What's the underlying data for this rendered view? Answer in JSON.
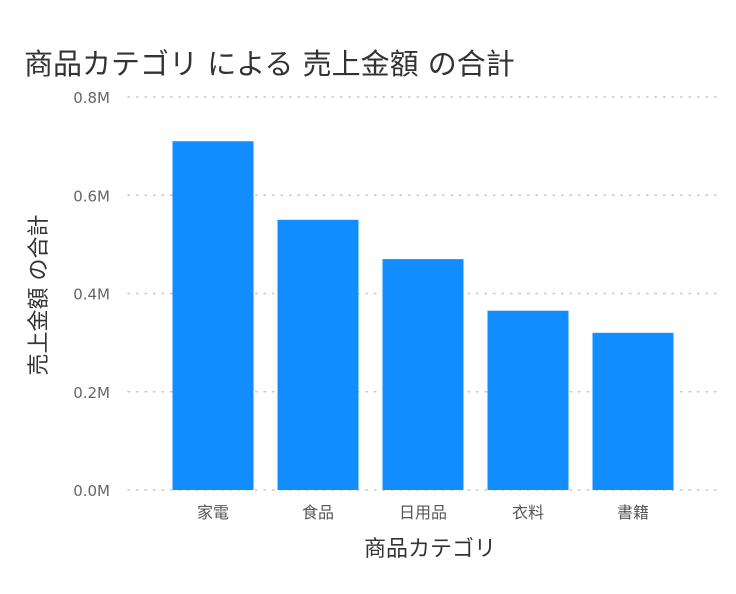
{
  "chart_data": {
    "type": "bar",
    "title": "商品カテゴリ による 売上金額 の合計",
    "xlabel": "商品カテゴリ",
    "ylabel": "売上金額 の合計",
    "categories": [
      "家電",
      "食品",
      "日用品",
      "衣料",
      "書籍"
    ],
    "values": [
      710000,
      550000,
      470000,
      365000,
      320000
    ],
    "ylim": [
      0,
      800000
    ],
    "yticks": [
      {
        "value": 0,
        "label": "0.0M"
      },
      {
        "value": 200000,
        "label": "0.2M"
      },
      {
        "value": 400000,
        "label": "0.4M"
      },
      {
        "value": 600000,
        "label": "0.6M"
      },
      {
        "value": 800000,
        "label": "0.8M"
      }
    ],
    "bar_color": "#118DFF",
    "grid": true,
    "legend": "none"
  }
}
